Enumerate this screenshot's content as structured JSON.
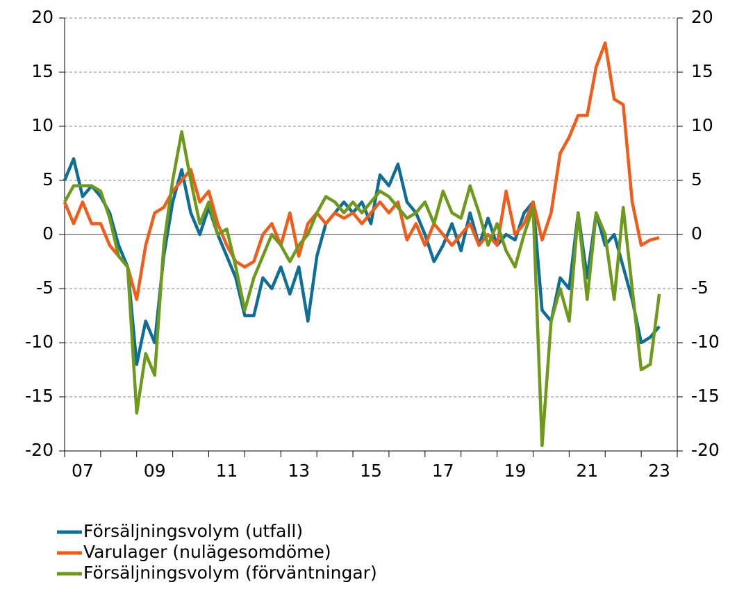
{
  "chart_data": {
    "type": "line",
    "x": [
      2007.0,
      2007.25,
      2007.5,
      2007.75,
      2008.0,
      2008.25,
      2008.5,
      2008.75,
      2009.0,
      2009.25,
      2009.5,
      2009.75,
      2010.0,
      2010.25,
      2010.5,
      2010.75,
      2011.0,
      2011.25,
      2011.5,
      2011.75,
      2012.0,
      2012.25,
      2012.5,
      2012.75,
      2013.0,
      2013.25,
      2013.5,
      2013.75,
      2014.0,
      2014.25,
      2014.5,
      2014.75,
      2015.0,
      2015.25,
      2015.5,
      2015.75,
      2016.0,
      2016.25,
      2016.5,
      2016.75,
      2017.0,
      2017.25,
      2017.5,
      2017.75,
      2018.0,
      2018.25,
      2018.5,
      2018.75,
      2019.0,
      2019.25,
      2019.5,
      2019.75,
      2020.0,
      2020.25,
      2020.5,
      2020.75,
      2021.0,
      2021.25,
      2021.5,
      2021.75,
      2022.0,
      2022.25,
      2022.5,
      2022.75,
      2023.0,
      2023.25,
      2023.5
    ],
    "series": [
      {
        "name": "Försäljningsvolym (utfall)",
        "color": "#0f6e96",
        "values": [
          5,
          7,
          3.5,
          4.5,
          3.5,
          2,
          -1,
          -3,
          -12,
          -8,
          -10,
          -2,
          3,
          6,
          2,
          0,
          2.5,
          0,
          -2,
          -4,
          -7.5,
          -7.5,
          -4,
          -5,
          -3,
          -5.5,
          -3,
          -8,
          -2,
          1,
          2,
          3,
          2,
          3,
          1,
          5.5,
          4.5,
          6.5,
          3,
          2,
          0,
          -2.5,
          -1,
          1,
          -1.5,
          2,
          -1,
          1.5,
          -1,
          0,
          -0.5,
          2,
          3,
          -7,
          -8,
          -4,
          -5,
          2,
          -4,
          2,
          -1,
          0,
          -3,
          -6,
          -10,
          -9.5,
          -8.5
        ]
      },
      {
        "name": "Varulager (nulägesomdöme)",
        "color": "#f25c19",
        "values": [
          3,
          1,
          3,
          1,
          1,
          -1,
          -2,
          -3,
          -6,
          -1,
          2,
          2.5,
          4,
          5,
          6,
          3,
          4,
          1,
          -1,
          -2.5,
          -3,
          -2.5,
          0,
          1,
          -1,
          2,
          -2,
          1,
          2,
          1,
          2,
          1.5,
          2,
          1,
          2,
          3,
          2,
          3,
          -0.5,
          1,
          -1,
          1,
          0,
          -1,
          0,
          1,
          -1,
          0,
          -1,
          4,
          0,
          1,
          3,
          -0.5,
          2,
          7.5,
          9,
          11,
          11,
          15.5,
          17.7,
          12.5,
          12,
          3,
          -1,
          -0.5,
          -0.3
        ]
      },
      {
        "name": "Försäljningsvolym (förväntningar)",
        "color": "#6e9a1c",
        "values": [
          3,
          4.5,
          4.5,
          4.5,
          4,
          1.5,
          -2,
          -3,
          -16.5,
          -11,
          -13,
          -1,
          5,
          9.5,
          5,
          1,
          3,
          0,
          0.5,
          -3,
          -7,
          -4,
          -2,
          0,
          -1,
          -2.5,
          -1,
          0,
          2,
          3.5,
          3,
          2,
          3,
          2,
          3,
          4,
          3.5,
          2.5,
          1.5,
          2,
          3,
          1,
          4,
          2,
          1.5,
          4.5,
          2,
          -1,
          1,
          -1.5,
          -3,
          0,
          2.5,
          -19.5,
          -8,
          -5,
          -8,
          2,
          -6,
          2,
          0,
          -6,
          2.5,
          -5,
          -12.5,
          -12,
          -5.5
        ]
      }
    ],
    "xlim": [
      2007,
      2024
    ],
    "xticks": [
      {
        "value": 2007.5,
        "label": "07"
      },
      {
        "value": 2009.5,
        "label": "09"
      },
      {
        "value": 2011.5,
        "label": "11"
      },
      {
        "value": 2013.5,
        "label": "13"
      },
      {
        "value": 2015.5,
        "label": "15"
      },
      {
        "value": 2017.5,
        "label": "17"
      },
      {
        "value": 2019.5,
        "label": "19"
      },
      {
        "value": 2021.5,
        "label": "21"
      },
      {
        "value": 2023.5,
        "label": "23"
      }
    ],
    "xminor_ticks": [
      2007,
      2008,
      2009,
      2010,
      2011,
      2012,
      2013,
      2014,
      2015,
      2016,
      2017,
      2018,
      2019,
      2020,
      2021,
      2022,
      2023,
      2024
    ],
    "ylim": [
      -20,
      20
    ],
    "yticks": [
      -20,
      -15,
      -10,
      -5,
      0,
      5,
      10,
      15,
      20
    ],
    "y2lim": [
      -20,
      20
    ],
    "y2ticks": [
      -20,
      -15,
      -10,
      -5,
      0,
      5,
      10,
      15,
      20
    ],
    "grid": true
  }
}
